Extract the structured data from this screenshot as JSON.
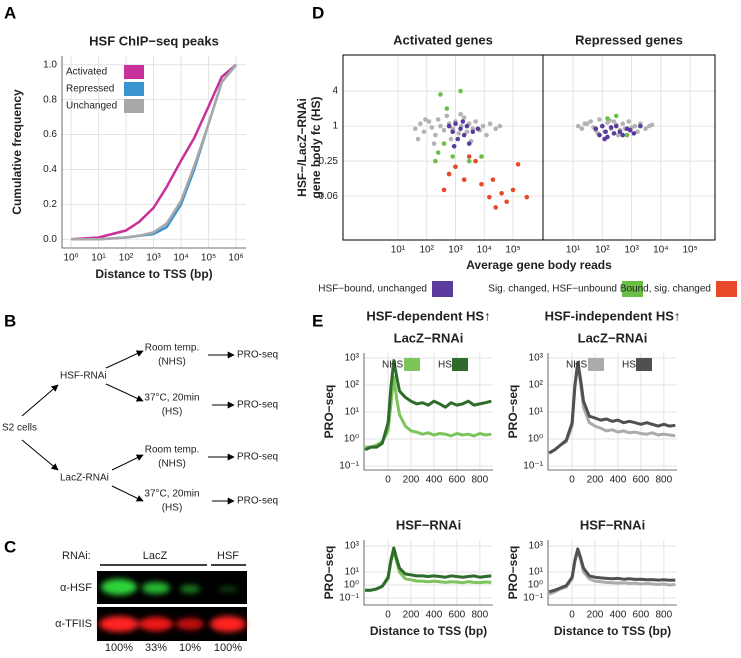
{
  "chart_data": [
    {
      "type": "line",
      "panel": "A",
      "title": "HSF ChIP−seq peaks",
      "xlabel": "Distance to TSS (bp)",
      "ylabel": "Cumulative frequency",
      "log_x": true,
      "grid": true,
      "legend": "top-left",
      "xlim": [
        0.47,
        2300000
      ],
      "ylim": [
        -0.05,
        1.05
      ],
      "xticks": [
        {
          "value": 1,
          "label": "10⁰"
        },
        {
          "value": 10,
          "label": "10¹"
        },
        {
          "value": 100,
          "label": "10²"
        },
        {
          "value": 1000,
          "label": "10³"
        },
        {
          "value": 10000,
          "label": "10⁴"
        },
        {
          "value": 100000,
          "label": "10⁵"
        },
        {
          "value": 1000000,
          "label": "10⁶"
        }
      ],
      "yticks": [
        {
          "value": 0,
          "label": "0.0"
        },
        0.2,
        0.4,
        0.6,
        0.8,
        {
          "value": 1,
          "label": "1.0"
        }
      ],
      "x": [
        1,
        10,
        100,
        300,
        1000,
        3000,
        10000,
        30000,
        100000,
        300000,
        1000000
      ],
      "series": [
        {
          "name": "Activated",
          "color": "#c9309a",
          "values": [
            0,
            0.01,
            0.05,
            0.1,
            0.18,
            0.3,
            0.45,
            0.58,
            0.76,
            0.93,
            1.0
          ]
        },
        {
          "name": "Repressed",
          "color": "#3a93d1",
          "values": [
            0,
            0,
            0.01,
            0.02,
            0.03,
            0.07,
            0.2,
            0.4,
            0.66,
            0.9,
            1.0
          ]
        },
        {
          "name": "Unchanged",
          "color": "#a8a8a8",
          "values": [
            0,
            0,
            0.01,
            0.02,
            0.04,
            0.09,
            0.22,
            0.42,
            0.66,
            0.9,
            1.0
          ]
        }
      ]
    },
    {
      "type": "scatter",
      "panel": "D",
      "ylabel": [
        "HSF−/LacZ−RNAi",
        "gene body fc (HS)"
      ],
      "xlabel": "Average gene body reads",
      "log_x": true,
      "log_y": true,
      "grid": true,
      "ylim": [
        0.011,
        16.7
      ],
      "yticks": [
        4,
        1,
        0.25,
        {
          "value": 0.0625,
          "label": "0.06"
        }
      ],
      "xticks": [
        {
          "value": 10,
          "label": "10¹"
        },
        {
          "value": 100,
          "label": "10²"
        },
        {
          "value": 1000,
          "label": "10³"
        },
        {
          "value": 10000,
          "label": "10⁴"
        },
        {
          "value": 100000,
          "label": "10⁵"
        }
      ],
      "series": [
        {
          "color": "#b3b3b3"
        },
        {
          "name": "HSF−bound, unchanged",
          "color": "#5b3c9e"
        },
        {
          "name": "Sig. changed, HSF−unbound",
          "color": "#6cbf45"
        },
        {
          "name": "Bound, sig. changed",
          "color": "#e8492a"
        }
      ],
      "facets": [
        {
          "title": "Activated genes",
          "xlim": [
            0.123,
            1100000
          ],
          "series": [
            {
              "x": [
                40,
                60,
                80,
                120,
                150,
                200,
                250,
                300,
                400,
                500,
                600,
                800,
                1000,
                1300,
                1600,
                2000,
                2500,
                3000,
                4000,
                5000,
                7000,
                9000,
                12000,
                16000,
                25000,
                35000,
                50,
                90,
                180,
                700,
                1500,
                3500
              ],
              "y": [
                0.9,
                1.1,
                0.8,
                1.2,
                0.95,
                0.7,
                1.3,
                1.0,
                0.85,
                1.5,
                1.1,
                0.9,
                1.2,
                0.75,
                1.0,
                1.4,
                0.8,
                1.1,
                0.9,
                1.2,
                0.85,
                1.0,
                0.7,
                1.1,
                0.9,
                1.0,
                0.6,
                1.3,
                0.5,
                0.6,
                1.6,
                0.55
              ]
            },
            {
              "x": [
                600,
                800,
                1000,
                1200,
                1500,
                2000,
                2500,
                3000,
                4000,
                6000,
                1800,
                900
              ],
              "y": [
                1.0,
                0.8,
                1.1,
                0.6,
                0.9,
                0.7,
                1.0,
                0.5,
                0.8,
                0.9,
                1.2,
                0.45
              ]
            },
            {
              "x": [
                300,
                500,
                800,
                1000,
                200,
                400,
                1500,
                3000,
                600,
                250,
                8000,
                2000
              ],
              "y": [
                3.5,
                2.0,
                0.3,
                0.2,
                0.25,
                0.5,
                4.0,
                0.25,
                0.15,
                0.35,
                0.3,
                0.12
              ]
            },
            {
              "x": [
                400,
                600,
                1000,
                2000,
                3000,
                5000,
                8000,
                15000,
                25000,
                40000,
                60000,
                100000,
                150000,
                300000,
                20000
              ],
              "y": [
                0.08,
                0.15,
                0.2,
                0.12,
                0.3,
                0.25,
                0.1,
                0.06,
                0.04,
                0.07,
                0.05,
                0.08,
                0.22,
                0.06,
                0.12
              ]
            }
          ]
        },
        {
          "title": "Repressed genes",
          "xlim": [
            0.94,
            710000
          ],
          "series": [
            {
              "x": [
                15,
                20,
                30,
                40,
                50,
                60,
                80,
                100,
                120,
                150,
                200,
                250,
                300,
                400,
                500,
                600,
                800,
                1000,
                1300,
                1600,
                2000,
                3000,
                4000,
                5000,
                25,
                70,
                180,
                350
              ],
              "y": [
                1.0,
                0.9,
                1.1,
                1.2,
                0.95,
                0.85,
                1.3,
                1.0,
                0.8,
                1.15,
                0.9,
                1.2,
                1.05,
                0.85,
                1.1,
                0.9,
                1.2,
                0.95,
                1.0,
                0.8,
                1.1,
                0.9,
                1.0,
                1.05,
                1.1,
                0.75,
                1.25,
                0.7
              ]
            },
            {
              "x": [
                60,
                80,
                100,
                130,
                150,
                200,
                250,
                300,
                400,
                500,
                700,
                900,
                1200,
                2000,
                120
              ],
              "y": [
                0.9,
                0.7,
                1.0,
                0.8,
                0.65,
                0.95,
                0.75,
                1.0,
                0.8,
                0.7,
                0.9,
                0.85,
                0.75,
                1.0,
                0.6
              ]
            },
            {
              "x": [
                300,
                150,
                700
              ],
              "y": [
                1.5,
                1.35,
                0.7
              ]
            },
            {
              "x": [],
              "y": []
            }
          ]
        }
      ]
    },
    {
      "type": "line",
      "panel": "E",
      "title": "HSF-dependent HS↑",
      "subtitle": "LacZ−RNAi",
      "ylabel": "PRO−seq",
      "log_y": true,
      "grid": true,
      "legend": "top",
      "xlim": [
        -210,
        915
      ],
      "ylim": [
        0.071,
        1530
      ],
      "xticks": [
        0,
        200,
        400,
        600,
        800
      ],
      "yticks": [
        {
          "value": 1000,
          "label": "10³"
        },
        {
          "value": 100,
          "label": "10²"
        },
        {
          "value": 10,
          "label": "10¹"
        },
        {
          "value": 1,
          "label": "10⁰"
        },
        {
          "value": 0.1,
          "label": "10⁻¹"
        }
      ],
      "x": [
        -200,
        -150,
        -100,
        -50,
        0,
        25,
        50,
        75,
        100,
        150,
        200,
        250,
        300,
        350,
        400,
        450,
        500,
        550,
        600,
        650,
        700,
        750,
        800,
        850,
        900
      ],
      "series": [
        {
          "name": "NHS",
          "color": "#7dc45b",
          "values": [
            0.5,
            0.5,
            0.6,
            0.8,
            2,
            20,
            200,
            30,
            8,
            3,
            2,
            1.8,
            1.5,
            1.7,
            1.4,
            1.6,
            1.5,
            1.3,
            1.6,
            1.4,
            1.5,
            1.3,
            1.6,
            1.4,
            1.5
          ]
        },
        {
          "name": "HS",
          "color": "#2f6b2a",
          "values": [
            0.4,
            0.5,
            0.5,
            0.7,
            4,
            80,
            800,
            200,
            60,
            35,
            25,
            20,
            22,
            18,
            25,
            20,
            15,
            22,
            18,
            20,
            25,
            18,
            20,
            22,
            25
          ]
        }
      ]
    },
    {
      "type": "line",
      "title": "HSF-independent HS↑",
      "subtitle": "LacZ−RNAi",
      "ylabel": "PRO−seq",
      "log_y": true,
      "grid": true,
      "legend": "top",
      "xlim": [
        -210,
        915
      ],
      "ylim": [
        0.071,
        1530
      ],
      "xticks": [
        0,
        200,
        400,
        600,
        800
      ],
      "yticks": [
        {
          "value": 1000,
          "label": "10³"
        },
        {
          "value": 100,
          "label": "10²"
        },
        {
          "value": 10,
          "label": "10¹"
        },
        {
          "value": 1,
          "label": "10⁰"
        },
        {
          "value": 0.1,
          "label": "10⁻¹"
        }
      ],
      "x": [
        -200,
        -150,
        -100,
        -50,
        0,
        25,
        50,
        75,
        100,
        150,
        200,
        250,
        300,
        350,
        400,
        450,
        500,
        550,
        600,
        650,
        700,
        750,
        800,
        850,
        900
      ],
      "series": [
        {
          "name": "NHS",
          "color": "#ababab",
          "values": [
            0.3,
            0.4,
            0.6,
            0.8,
            3,
            80,
            600,
            100,
            15,
            4,
            3,
            2.5,
            2,
            2.2,
            1.8,
            2,
            1.7,
            1.8,
            1.6,
            1.5,
            1.7,
            1.4,
            1.5,
            1.4,
            1.3
          ]
        },
        {
          "name": "HS",
          "color": "#505050",
          "values": [
            0.3,
            0.4,
            0.6,
            0.9,
            4,
            100,
            700,
            150,
            25,
            7,
            6,
            5,
            5.5,
            4.5,
            5,
            4,
            4.5,
            4,
            3.5,
            4,
            3.5,
            3,
            3.5,
            3,
            3.2
          ]
        }
      ]
    },
    {
      "type": "line",
      "subtitle": "HSF−RNAi",
      "ylabel": "PRO−seq",
      "xlabel": "Distance to TSS (bp)",
      "log_y": true,
      "grid": true,
      "xlim": [
        -210,
        915
      ],
      "ylim": [
        0.029,
        2900
      ],
      "xticks": [
        0,
        200,
        400,
        600,
        800
      ],
      "yticks": [
        {
          "value": 1000,
          "label": "10³"
        },
        {
          "value": 10,
          "label": "10¹"
        },
        {
          "value": 1,
          "label": "10⁰"
        },
        {
          "value": 0.1,
          "label": "10⁻¹"
        }
      ],
      "x": [
        -200,
        -150,
        -100,
        -50,
        0,
        25,
        50,
        75,
        100,
        150,
        200,
        250,
        300,
        350,
        400,
        450,
        500,
        550,
        600,
        650,
        700,
        750,
        800,
        850,
        900
      ],
      "series": [
        {
          "color": "#7dc45b",
          "values": [
            0.4,
            0.4,
            0.5,
            0.8,
            3,
            60,
            500,
            60,
            10,
            3,
            2.5,
            2,
            2,
            1.8,
            2,
            1.8,
            1.6,
            1.8,
            1.7,
            1.5,
            1.8,
            1.6,
            1.5,
            1.7,
            1.6
          ]
        },
        {
          "color": "#2f6b2a",
          "values": [
            0.4,
            0.4,
            0.5,
            0.8,
            4,
            80,
            700,
            100,
            20,
            7,
            6,
            5,
            5,
            4.5,
            5,
            4.5,
            4,
            5,
            4.5,
            4,
            4.5,
            5,
            4,
            4.5,
            5
          ]
        }
      ]
    },
    {
      "type": "line",
      "subtitle": "HSF−RNAi",
      "ylabel": "PRO−seq",
      "xlabel": "Distance to TSS (bp)",
      "log_y": true,
      "grid": true,
      "xlim": [
        -210,
        915
      ],
      "ylim": [
        0.029,
        2900
      ],
      "xticks": [
        0,
        200,
        400,
        600,
        800
      ],
      "yticks": [
        {
          "value": 1000,
          "label": "10³"
        },
        {
          "value": 10,
          "label": "10¹"
        },
        {
          "value": 1,
          "label": "10⁰"
        },
        {
          "value": 0.1,
          "label": "10⁻¹"
        }
      ],
      "x": [
        -200,
        -150,
        -100,
        -50,
        0,
        25,
        50,
        75,
        100,
        150,
        200,
        250,
        300,
        350,
        400,
        450,
        500,
        550,
        600,
        650,
        700,
        750,
        800,
        850,
        900
      ],
      "series": [
        {
          "color": "#ababab",
          "values": [
            0.2,
            0.3,
            0.5,
            0.7,
            3,
            60,
            500,
            80,
            10,
            3,
            2,
            1.8,
            1.6,
            1.5,
            1.4,
            1.5,
            1.3,
            1.4,
            1.2,
            1.3,
            1.2,
            1.1,
            1.2,
            1.0,
            1.1
          ]
        },
        {
          "color": "#505050",
          "values": [
            0.3,
            0.4,
            0.6,
            0.9,
            4,
            80,
            600,
            120,
            20,
            5,
            4,
            3.5,
            3.2,
            3,
            3.2,
            2.8,
            3,
            2.7,
            2.8,
            2.5,
            2.6,
            2.4,
            2.5,
            2.3,
            2.4
          ]
        }
      ]
    }
  ],
  "diagram": {
    "label": "B",
    "root": "S2 cells",
    "branches": [
      {
        "label": "HSF-RNAi",
        "conditions": [
          {
            "line1": "Room temp.",
            "line2": "(NHS)",
            "result": "PRO-seq"
          },
          {
            "line1": "37°C, 20min",
            "line2": "(HS)",
            "result": "PRO-seq"
          }
        ]
      },
      {
        "label": "LacZ-RNAi",
        "conditions": [
          {
            "line1": "Room temp.",
            "line2": "(NHS)",
            "result": "PRO-seq"
          },
          {
            "line1": "37°C, 20min",
            "line2": "(HS)",
            "result": "PRO-seq"
          }
        ]
      }
    ]
  },
  "blot": {
    "label": "C",
    "rnai_label": "RNAi:",
    "groups": [
      "LacZ",
      "HSF"
    ],
    "rows": [
      "α-HSF",
      "α-TFIIS"
    ],
    "lanes": [
      "100%",
      "33%",
      "10%",
      "100%"
    ]
  }
}
